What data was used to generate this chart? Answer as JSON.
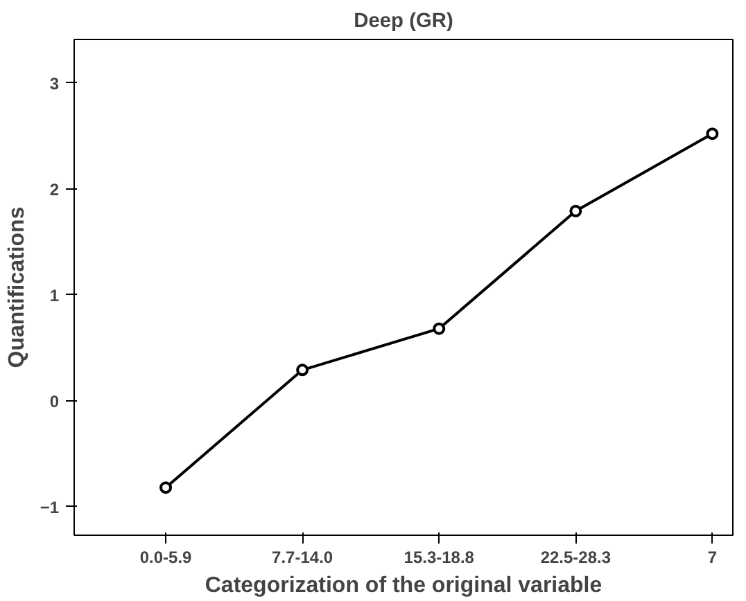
{
  "chart_data": {
    "type": "line",
    "title": "Deep (GR)",
    "xlabel": "Categorization of the original variable",
    "ylabel": "Quantifications",
    "categories": [
      "0.0-5.9",
      "7.7-14.0",
      "15.3-18.8",
      "22.5-28.3",
      "7"
    ],
    "series": [
      {
        "color": "#000000",
        "values": [
          -0.82,
          0.29,
          0.68,
          1.79,
          2.52
        ]
      }
    ],
    "ylim": [
      -1.27,
      3.41
    ],
    "yticks": [
      -1,
      0,
      1,
      2,
      3
    ],
    "grid": false,
    "marker": "circle",
    "line_style": "solid"
  }
}
